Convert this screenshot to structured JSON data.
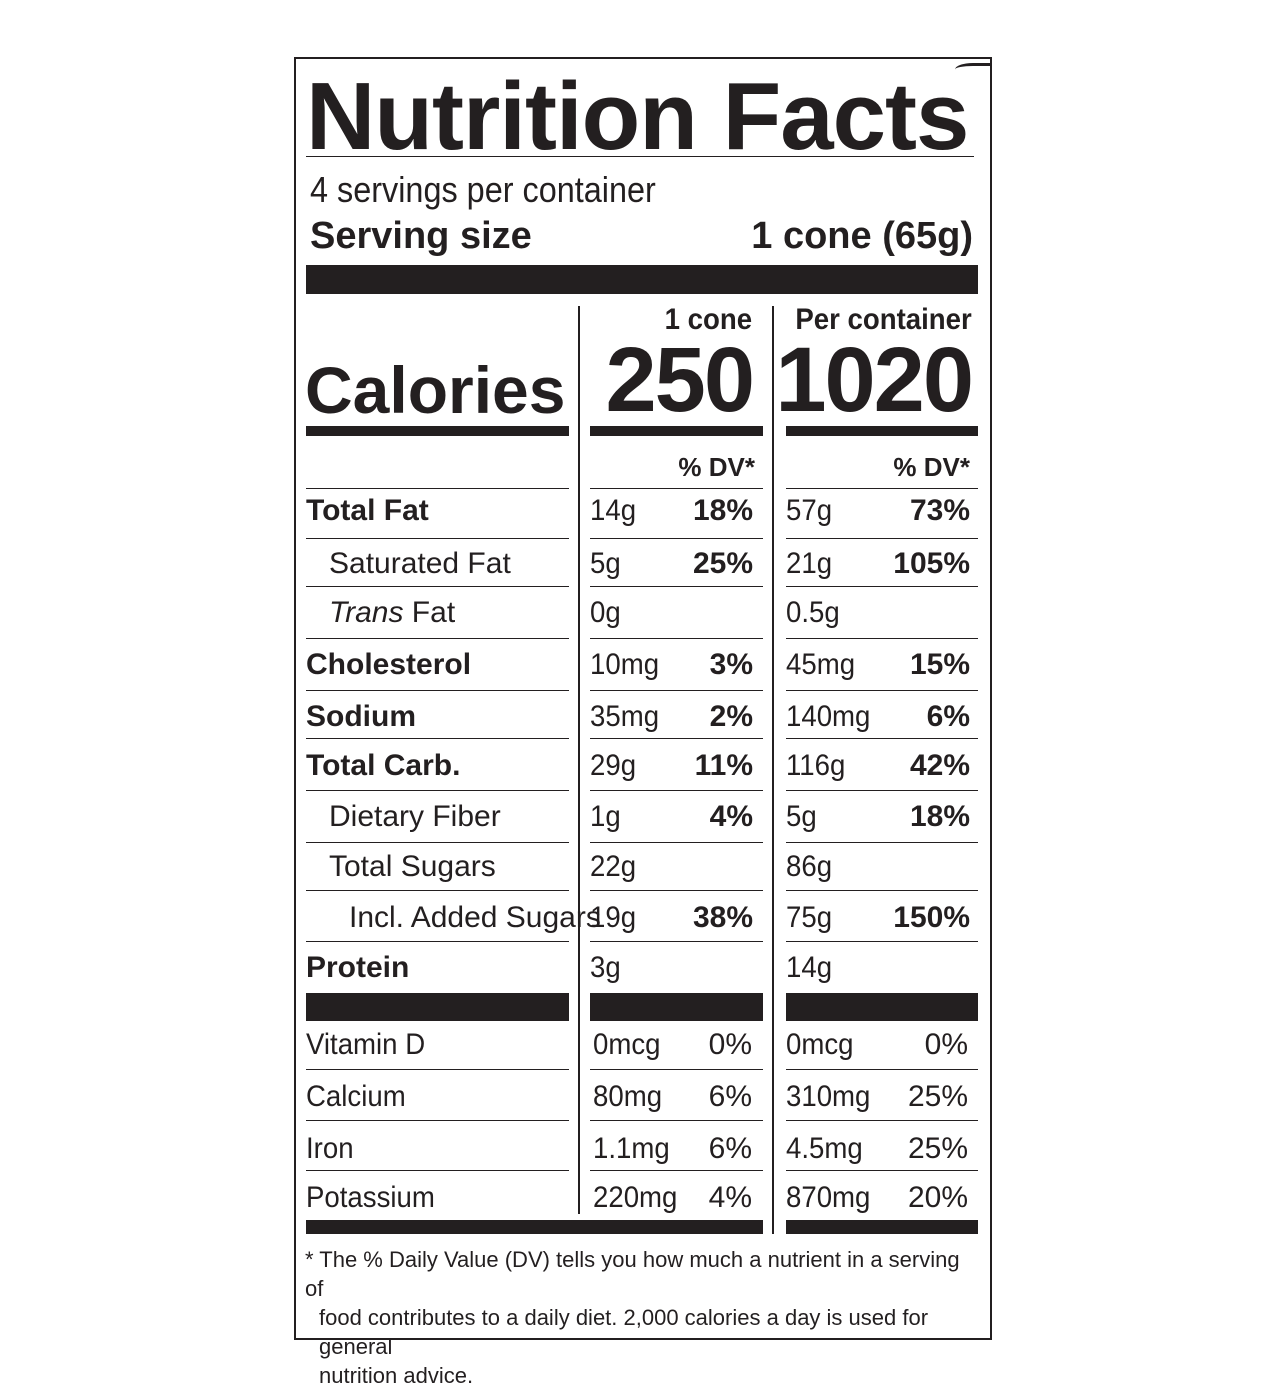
{
  "title": "Nutrition Facts",
  "servings_per_container": "4 servings per container",
  "serving_size_label": "Serving size",
  "serving_size_value": "1 cone (65g)",
  "column_headers": {
    "col1": "1 cone",
    "col2": "Per container"
  },
  "calories": {
    "label": "Calories",
    "col1": "250",
    "col2": "1020"
  },
  "dv_header": {
    "col1": "% DV*",
    "col2": "% DV*"
  },
  "nutrients": [
    {
      "label": "Total Fat",
      "amt1": "14g",
      "pct1": "18%",
      "amt2": "57g",
      "pct2": "73%"
    },
    {
      "label": "Saturated Fat",
      "amt1": "5g",
      "pct1": "25%",
      "amt2": "21g",
      "pct2": "105%"
    },
    {
      "label_italic": "Trans",
      "label_rest": " Fat",
      "amt1": "0g",
      "pct1": "",
      "amt2": "0.5g",
      "pct2": ""
    },
    {
      "label": "Cholesterol",
      "amt1": "10mg",
      "pct1": "3%",
      "amt2": "45mg",
      "pct2": "15%"
    },
    {
      "label": "Sodium",
      "amt1": "35mg",
      "pct1": "2%",
      "amt2": "140mg",
      "pct2": "6%"
    },
    {
      "label": "Total Carb.",
      "amt1": "29g",
      "pct1": "11%",
      "amt2": "116g",
      "pct2": "42%"
    },
    {
      "label": "Dietary Fiber",
      "amt1": "1g",
      "pct1": "4%",
      "amt2": "5g",
      "pct2": "18%"
    },
    {
      "label": "Total Sugars",
      "amt1": "22g",
      "pct1": "",
      "amt2": "86g",
      "pct2": ""
    },
    {
      "label": "Incl. Added Sugars",
      "amt1": "19g",
      "pct1": "38%",
      "amt2": "75g",
      "pct2": "150%"
    },
    {
      "label": "Protein",
      "amt1": "3g",
      "pct1": "",
      "amt2": "14g",
      "pct2": ""
    }
  ],
  "vitamins": [
    {
      "label": "Vitamin D",
      "amt1": "0mcg",
      "pct1": "0%",
      "amt2": "0mcg",
      "pct2": "0%"
    },
    {
      "label": "Calcium",
      "amt1": "80mg",
      "pct1": "6%",
      "amt2": "310mg",
      "pct2": "25%"
    },
    {
      "label": "Iron",
      "amt1": "1.1mg",
      "pct1": "6%",
      "amt2": "4.5mg",
      "pct2": "25%"
    },
    {
      "label": "Potassium",
      "amt1": "220mg",
      "pct1": "4%",
      "amt2": "870mg",
      "pct2": "20%"
    }
  ],
  "footnote": {
    "line1": "* The % Daily Value (DV) tells you how much a nutrient in a serving of",
    "line2": "food contributes to a daily diet. 2,000 calories a day is used for general",
    "line3": "nutrition advice."
  }
}
